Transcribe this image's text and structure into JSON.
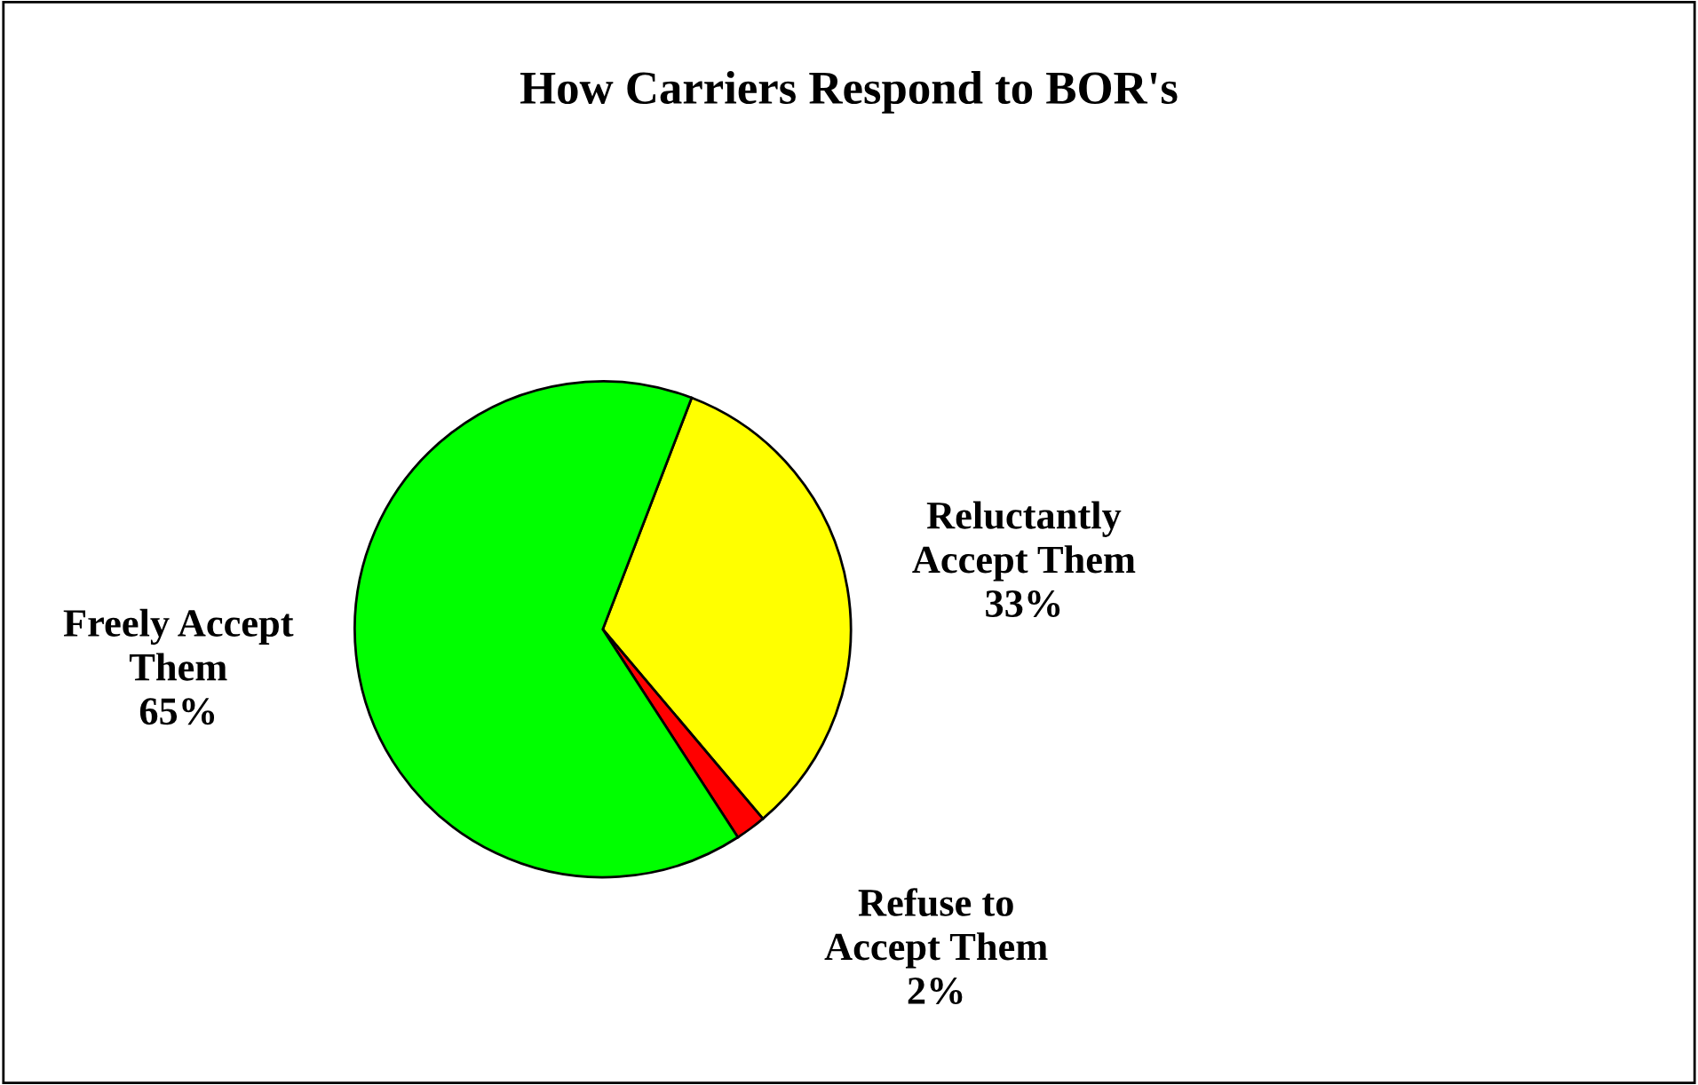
{
  "chart_data": {
    "type": "pie",
    "title": "How Carriers Respond to BOR's",
    "categories": [
      "Reluctantly\nAccept Them",
      "Refuse to\nAccept Them",
      "Freely Accept\nThem"
    ],
    "values": [
      33,
      2,
      65
    ],
    "value_labels": [
      "33%",
      "2%",
      "65%"
    ],
    "colors": [
      "#ffff00",
      "#ff0000",
      "#00ff00"
    ],
    "legend": false
  }
}
